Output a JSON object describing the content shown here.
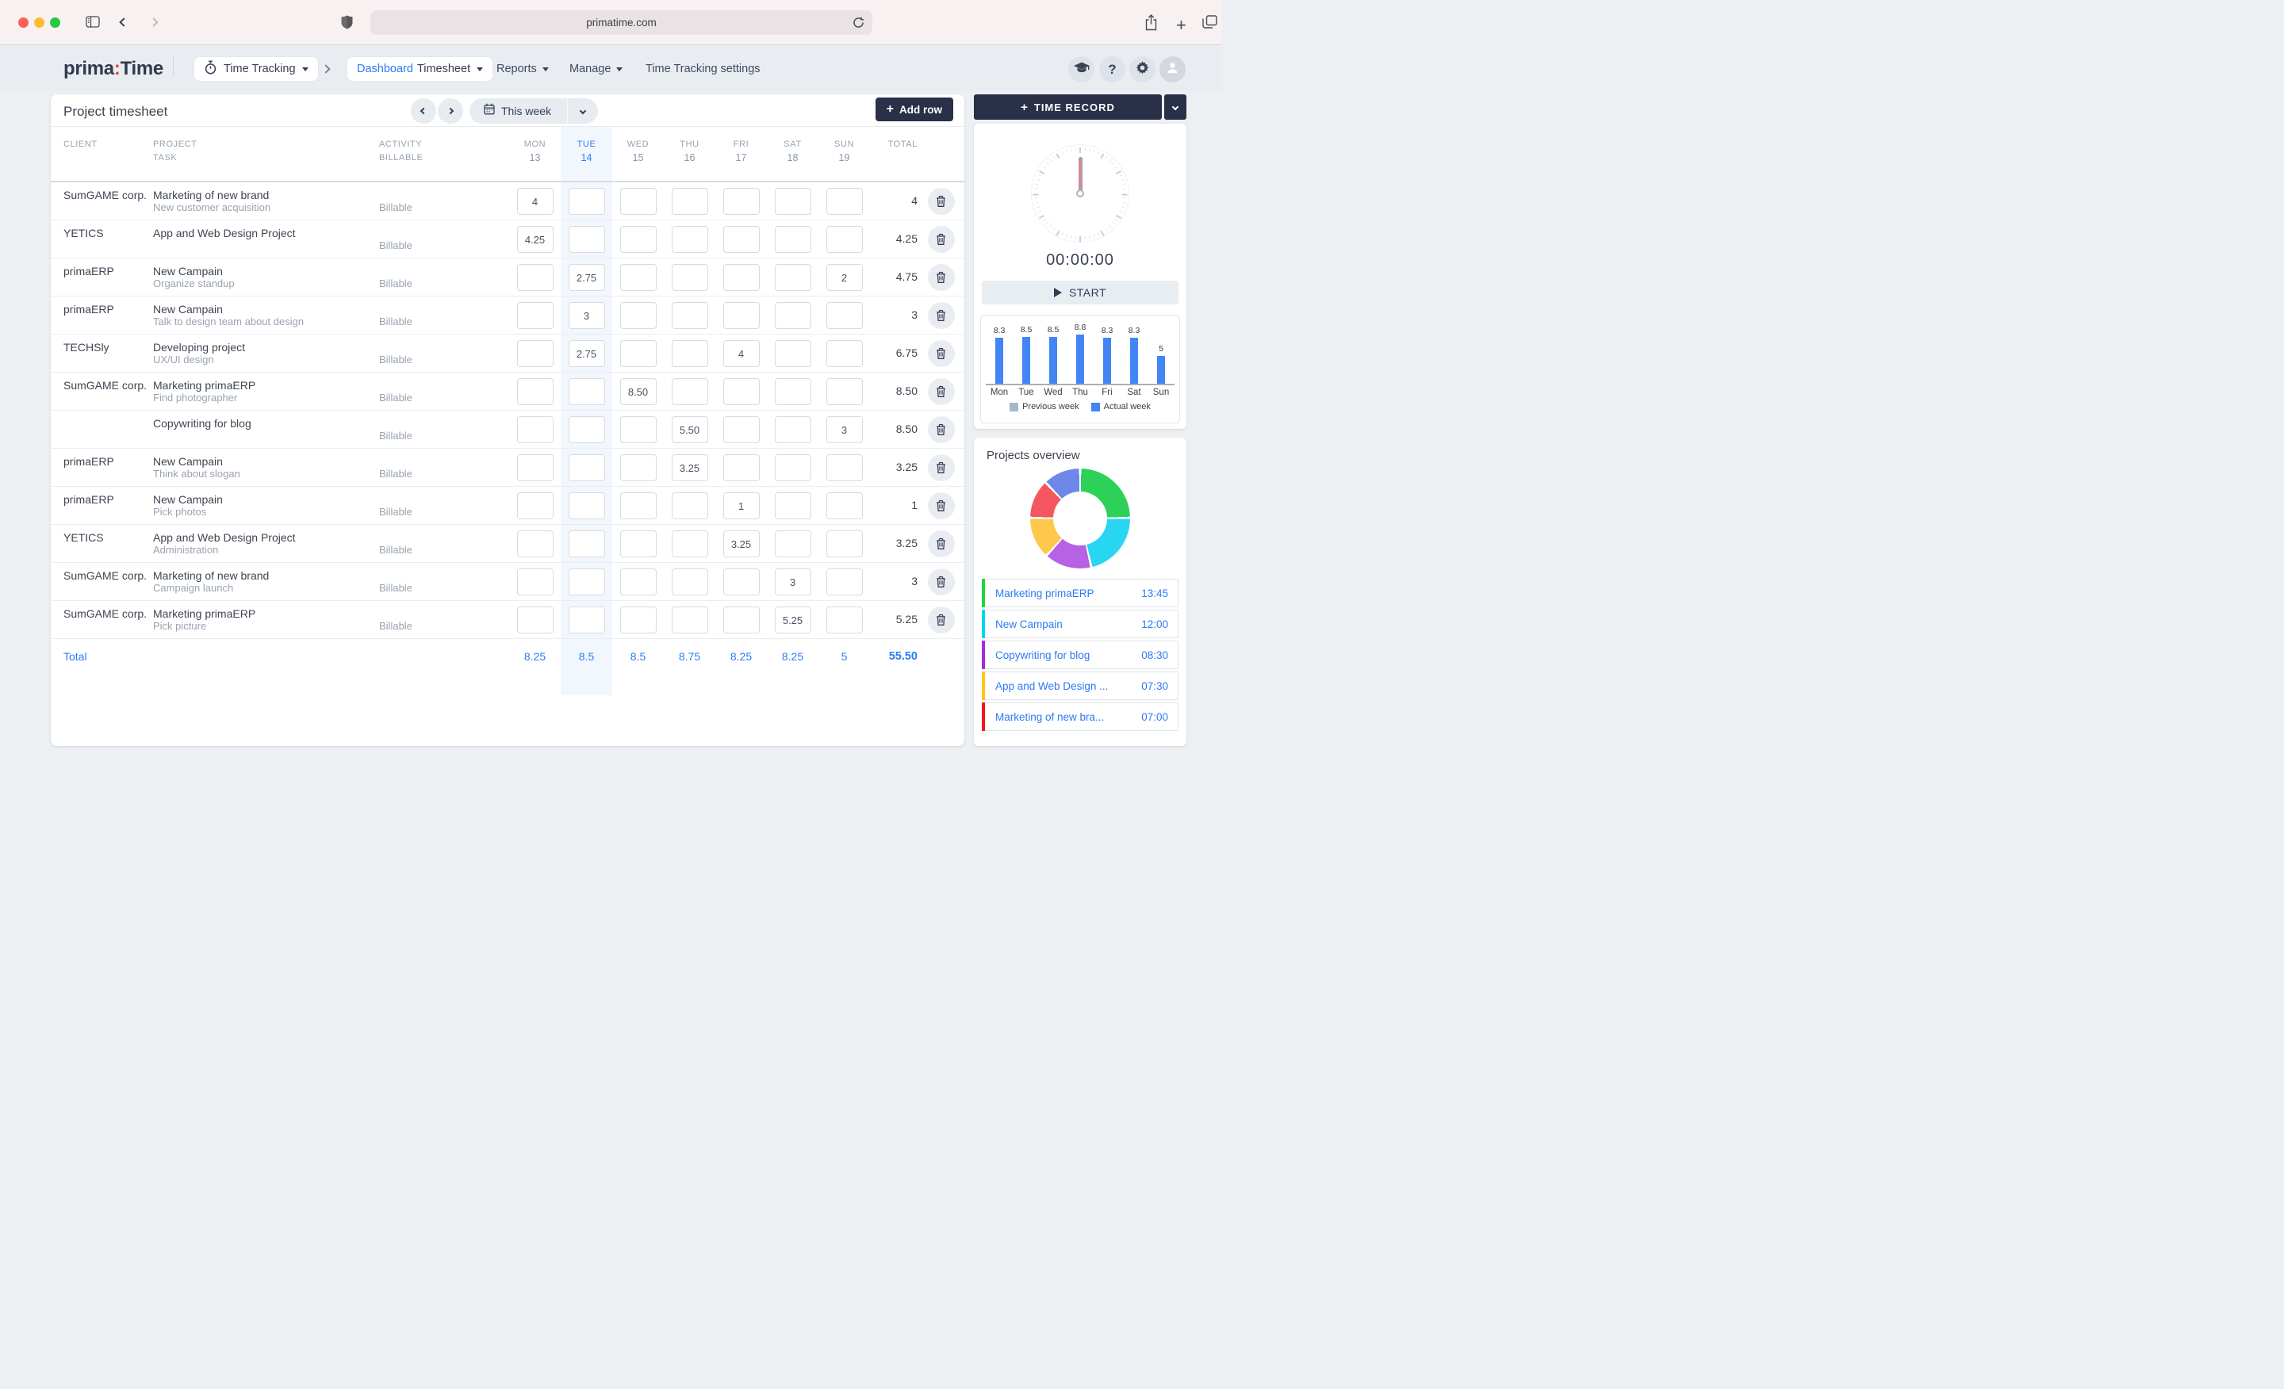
{
  "browser": {
    "url": "primatime.com"
  },
  "app_header": {
    "logo": {
      "prima": "prima",
      "colon": ":",
      "time": "Time"
    },
    "nav": {
      "module": "Time Tracking",
      "dashboard": "Dashboard",
      "timesheet": "Timesheet",
      "reports": "Reports",
      "manage": "Manage",
      "settings": "Time Tracking settings"
    }
  },
  "timesheet": {
    "title": "Project timesheet",
    "week_selector": "This week",
    "add_row_label": "Add row",
    "columns": {
      "client": "CLIENT",
      "project": "PROJECT",
      "task_sub": "TASK",
      "activity": "ACTIVITY",
      "billable_sub": "BILLABLE",
      "total": "TOTAL",
      "days": [
        {
          "name": "MON",
          "date": "13",
          "active": false
        },
        {
          "name": "TUE",
          "date": "14",
          "active": true
        },
        {
          "name": "WED",
          "date": "15",
          "active": false
        },
        {
          "name": "THU",
          "date": "16",
          "active": false
        },
        {
          "name": "FRI",
          "date": "17",
          "active": false
        },
        {
          "name": "SAT",
          "date": "18",
          "active": false
        },
        {
          "name": "SUN",
          "date": "19",
          "active": false
        }
      ]
    },
    "rows": [
      {
        "client": "SumGAME corp.",
        "project": "Marketing of new brand",
        "task": "New customer acquisition",
        "activity": "Billable",
        "days": [
          "4",
          "",
          "",
          "",
          "",
          "",
          ""
        ],
        "total": "4"
      },
      {
        "client": "YETICS",
        "project": "App and Web Design Project",
        "task": "",
        "activity": "Billable",
        "days": [
          "4.25",
          "",
          "",
          "",
          "",
          "",
          ""
        ],
        "total": "4.25"
      },
      {
        "client": "primaERP",
        "project": "New Campain",
        "task": "Organize standup",
        "activity": "Billable",
        "days": [
          "",
          "2.75",
          "",
          "",
          "",
          "",
          "2"
        ],
        "total": "4.75"
      },
      {
        "client": "primaERP",
        "project": "New Campain",
        "task": "Talk to design team about design",
        "activity": "Billable",
        "days": [
          "",
          "3",
          "",
          "",
          "",
          "",
          ""
        ],
        "total": "3"
      },
      {
        "client": "TECHSly",
        "project": "Developing project",
        "task": "UX/UI design",
        "activity": "Billable",
        "days": [
          "",
          "2.75",
          "",
          "",
          "4",
          "",
          ""
        ],
        "total": "6.75"
      },
      {
        "client": "SumGAME corp.",
        "project": "Marketing primaERP",
        "task": "Find photographer",
        "activity": "Billable",
        "days": [
          "",
          "",
          "8.50",
          "",
          "",
          "",
          ""
        ],
        "total": "8.50"
      },
      {
        "client": "",
        "project": "Copywriting for blog",
        "task": "",
        "activity": "Billable",
        "days": [
          "",
          "",
          "",
          "5.50",
          "",
          "",
          "3"
        ],
        "total": "8.50"
      },
      {
        "client": "primaERP",
        "project": "New Campain",
        "task": "Think about slogan",
        "activity": "Billable",
        "days": [
          "",
          "",
          "",
          "3.25",
          "",
          "",
          ""
        ],
        "total": "3.25"
      },
      {
        "client": "primaERP",
        "project": "New Campain",
        "task": "Pick photos",
        "activity": "Billable",
        "days": [
          "",
          "",
          "",
          "",
          "1",
          "",
          ""
        ],
        "total": "1"
      },
      {
        "client": "YETICS",
        "project": "App and Web Design Project",
        "task": "Administration",
        "activity": "Billable",
        "days": [
          "",
          "",
          "",
          "",
          "3.25",
          "",
          ""
        ],
        "total": "3.25"
      },
      {
        "client": "SumGAME corp.",
        "project": "Marketing of new brand",
        "task": "Campaign launch",
        "activity": "Billable",
        "days": [
          "",
          "",
          "",
          "",
          "",
          "3",
          ""
        ],
        "total": "3"
      },
      {
        "client": "SumGAME corp.",
        "project": "Marketing primaERP",
        "task": "Pick picture",
        "activity": "Billable",
        "days": [
          "",
          "",
          "",
          "",
          "",
          "5.25",
          ""
        ],
        "total": "5.25"
      }
    ],
    "total_row": {
      "label": "Total",
      "days": [
        "8.25",
        "8.5",
        "8.5",
        "8.75",
        "8.25",
        "8.25",
        "5"
      ],
      "total": "55.50"
    }
  },
  "time_record": {
    "button_label": "TIME RECORD",
    "timer": "00:00:00",
    "start_label": "START"
  },
  "chart_data": [
    {
      "type": "bar",
      "title": "Weekly hours",
      "categories": [
        "Mon",
        "Tue",
        "Wed",
        "Thu",
        "Fri",
        "Sat",
        "Sun"
      ],
      "series": [
        {
          "name": "Previous week",
          "color": "#a6b8c6",
          "values": []
        },
        {
          "name": "Actual week",
          "color": "#4285f4",
          "values": [
            8.3,
            8.5,
            8.5,
            8.8,
            8.3,
            8.3,
            5
          ]
        }
      ],
      "value_labels": [
        "8.3",
        "8.5",
        "8.5",
        "8.8",
        "8.3",
        "8.3",
        "5"
      ],
      "ylim": [
        0,
        10
      ],
      "grid": false,
      "legend_position": "bottom"
    },
    {
      "type": "donut",
      "title": "Projects overview",
      "slices": [
        {
          "label": "Marketing primaERP",
          "value": 13.75,
          "color": "#2ed158"
        },
        {
          "label": "New Campain",
          "value": 12,
          "color": "#29d6f2"
        },
        {
          "label": "Copywriting for blog",
          "value": 8.5,
          "color": "#b761e4"
        },
        {
          "label": "App and Web Design Project",
          "value": 7.5,
          "color": "#fdc84b"
        },
        {
          "label": "Marketing of new brand",
          "value": 7,
          "color": "#f4575f"
        },
        {
          "label": "Developing project",
          "value": 6.75,
          "color": "#6e88e9"
        }
      ]
    }
  ],
  "projects_overview": {
    "title": "Projects overview",
    "items": [
      {
        "label": "Marketing primaERP",
        "time": "13:45",
        "color": "#1fd53c"
      },
      {
        "label": "New Campain",
        "time": "12:00",
        "color": "#00d4f2"
      },
      {
        "label": "Copywriting for blog",
        "time": "08:30",
        "color": "#a62ae0"
      },
      {
        "label": "App and Web Design ...",
        "time": "07:30",
        "color": "#ffc51f"
      },
      {
        "label": "Marketing of new bra...",
        "time": "07:00",
        "color": "#f5151b"
      }
    ]
  }
}
